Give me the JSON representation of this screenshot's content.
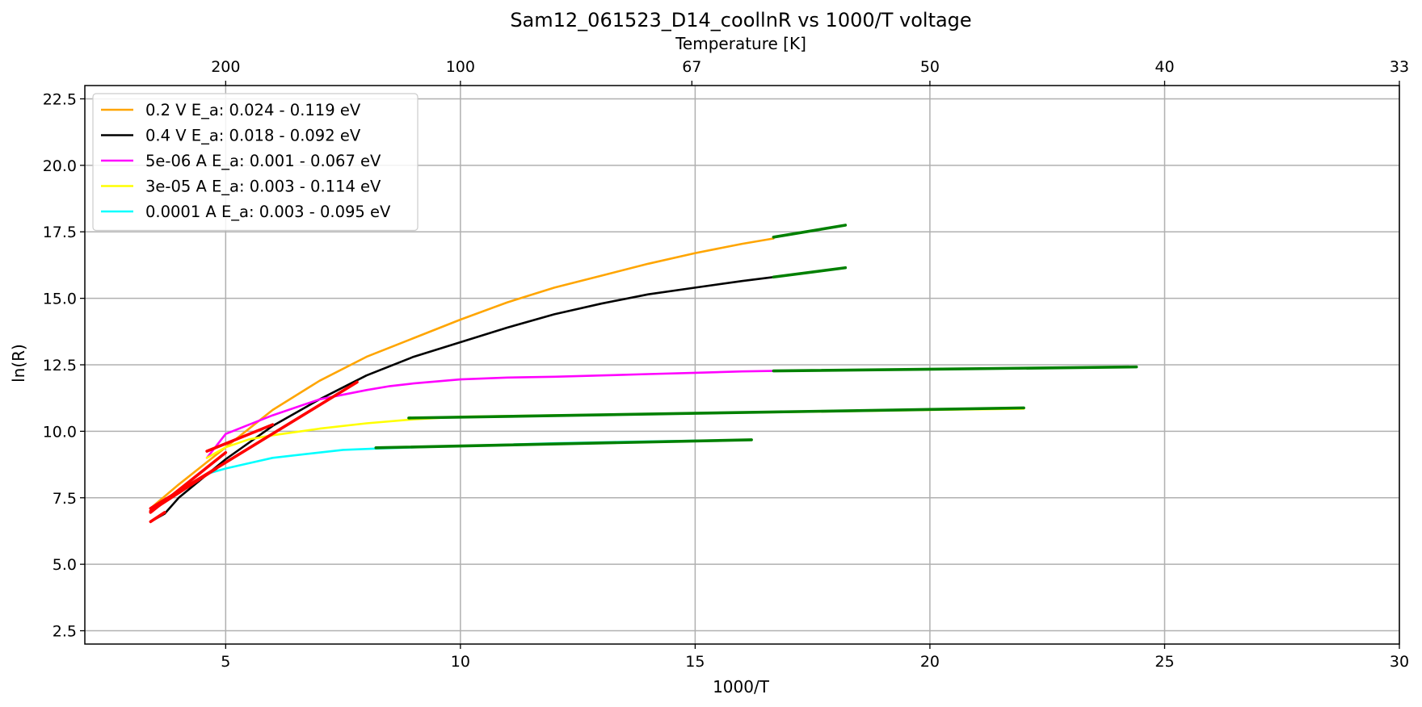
{
  "chart_data": {
    "type": "line",
    "title": "Sam12_061523_D14_coollnR vs 1000/T voltage",
    "xlabel": "1000/T",
    "ylabel": "ln(R)",
    "top_xlabel": "Temperature [K]",
    "xlim": [
      2,
      30
    ],
    "ylim": [
      2,
      23
    ],
    "grid": true,
    "legend_position": "upper-left",
    "x_ticks": [
      5,
      10,
      15,
      20,
      25,
      30
    ],
    "x_tick_labels": [
      "5",
      "10",
      "15",
      "20",
      "25",
      "30"
    ],
    "y_ticks": [
      2.5,
      5.0,
      7.5,
      10.0,
      12.5,
      15.0,
      17.5,
      20.0,
      22.5
    ],
    "y_tick_labels": [
      "2.5",
      "5.0",
      "7.5",
      "10.0",
      "12.5",
      "15.0",
      "17.5",
      "20.0",
      "22.5"
    ],
    "top_ticks": [
      5,
      10,
      14.93,
      20,
      25,
      30.3
    ],
    "top_tick_labels": [
      "200",
      "100",
      "67",
      "50",
      "40",
      "33"
    ],
    "series": [
      {
        "name": "0.2 V  E_a: 0.024 - 0.119 eV",
        "color": "#ffa500",
        "x": [
          3.4,
          4,
          5,
          6,
          7,
          8,
          9,
          10,
          11,
          12,
          13,
          14,
          15,
          16,
          16.67
        ],
        "y": [
          7.1,
          8.0,
          9.4,
          10.8,
          11.9,
          12.8,
          13.5,
          14.2,
          14.85,
          15.4,
          15.85,
          16.3,
          16.7,
          17.05,
          17.25
        ]
      },
      {
        "name": "0.4 V  E_a: 0.018 - 0.092 eV",
        "color": "#000000",
        "x": [
          3.4,
          3.7,
          4,
          5,
          6,
          7,
          8,
          9,
          10,
          11,
          12,
          13,
          14,
          15,
          16,
          16.67
        ],
        "y": [
          6.6,
          6.9,
          7.5,
          8.95,
          10.2,
          11.2,
          12.1,
          12.8,
          13.35,
          13.9,
          14.4,
          14.8,
          15.15,
          15.4,
          15.65,
          15.8
        ]
      },
      {
        "name": "5e-06 A E_a: 0.001 - 0.067 eV",
        "color": "#ff00ff",
        "x": [
          4.6,
          5,
          6,
          7,
          8,
          8.5,
          9,
          10,
          11,
          12,
          13,
          14,
          15,
          16,
          16.67
        ],
        "y": [
          9.0,
          9.9,
          10.6,
          11.2,
          11.55,
          11.7,
          11.8,
          11.95,
          12.02,
          12.05,
          12.1,
          12.15,
          12.2,
          12.25,
          12.27
        ]
      },
      {
        "name": "3e-05 A E_a: 0.003 - 0.114 eV",
        "color": "#ffff00",
        "x": [
          4.6,
          5,
          5.5,
          6,
          7,
          8,
          9,
          10,
          12,
          14,
          16,
          18,
          20,
          22
        ],
        "y": [
          9.0,
          9.4,
          9.7,
          9.85,
          10.1,
          10.3,
          10.45,
          10.55,
          10.6,
          10.65,
          10.7,
          10.75,
          10.8,
          10.85
        ]
      },
      {
        "name": "0.0001 A E_a: 0.003 - 0.095 eV",
        "color": "#00ffff",
        "x": [
          4.6,
          5,
          5.5,
          6,
          7,
          7.5,
          8.2,
          10,
          12,
          14,
          16.2
        ],
        "y": [
          8.4,
          8.6,
          8.8,
          9.0,
          9.2,
          9.3,
          9.35,
          9.45,
          9.55,
          9.62,
          9.68
        ]
      }
    ],
    "fit_segments": [
      {
        "color": "#ff0000",
        "x": [
          3.4,
          7.8
        ],
        "y": [
          7.1,
          11.85
        ]
      },
      {
        "color": "#ff0000",
        "x": [
          3.4,
          5.0
        ],
        "y": [
          6.95,
          9.2
        ]
      },
      {
        "color": "#ff0000",
        "x": [
          3.4,
          3.7
        ],
        "y": [
          6.6,
          6.95
        ]
      },
      {
        "color": "#ff0000",
        "x": [
          4.6,
          6.0
        ],
        "y": [
          9.25,
          10.25
        ]
      },
      {
        "color": "#ff0000",
        "x": [
          3.4,
          4.8
        ],
        "y": [
          7.0,
          8.6
        ]
      },
      {
        "color": "#008000",
        "x": [
          16.67,
          18.2
        ],
        "y": [
          17.3,
          17.75
        ]
      },
      {
        "color": "#008000",
        "x": [
          16.67,
          18.2
        ],
        "y": [
          15.8,
          16.15
        ]
      },
      {
        "color": "#008000",
        "x": [
          16.67,
          24.4
        ],
        "y": [
          12.27,
          12.42
        ]
      },
      {
        "color": "#008000",
        "x": [
          8.9,
          22.0
        ],
        "y": [
          10.5,
          10.88
        ]
      },
      {
        "color": "#008000",
        "x": [
          8.2,
          16.2
        ],
        "y": [
          9.38,
          9.68
        ]
      }
    ]
  }
}
